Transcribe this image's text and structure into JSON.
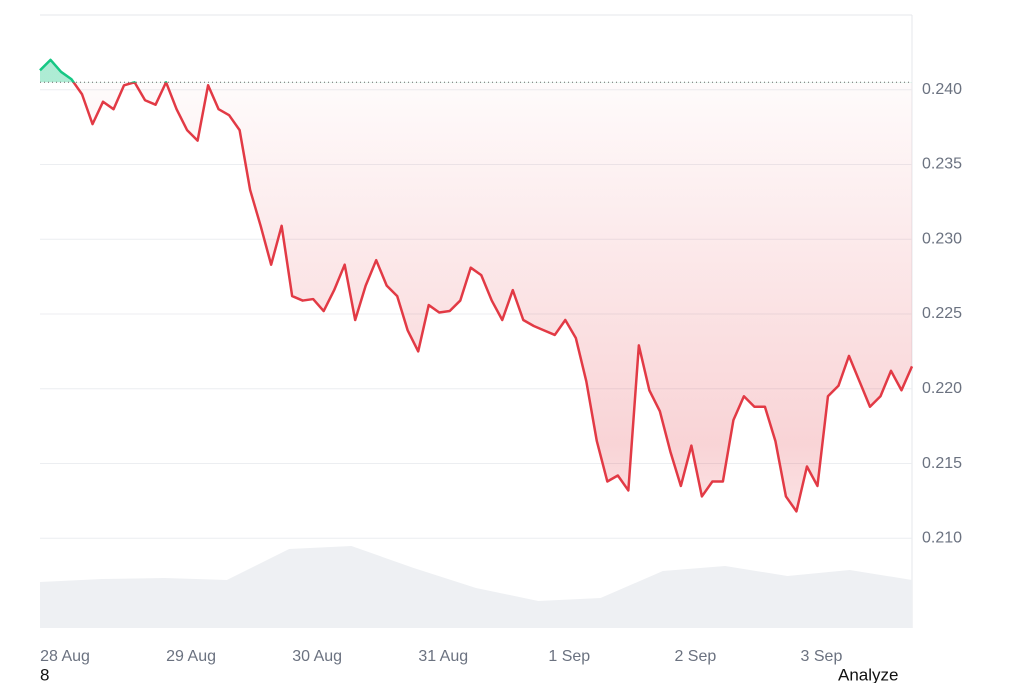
{
  "chart_data": {
    "type": "line",
    "categories": [
      null,
      null,
      "28 Aug",
      null,
      null,
      null,
      null,
      null,
      null,
      null,
      null,
      null,
      null,
      null,
      "29 Aug",
      null,
      null,
      null,
      null,
      null,
      null,
      null,
      null,
      null,
      null,
      null,
      "30 Aug",
      null,
      null,
      null,
      null,
      null,
      null,
      null,
      null,
      null,
      null,
      null,
      "31 Aug",
      null,
      null,
      null,
      null,
      null,
      null,
      null,
      null,
      null,
      null,
      null,
      "1 Sep",
      null,
      null,
      null,
      null,
      null,
      null,
      null,
      null,
      null,
      null,
      null,
      "2 Sep",
      null,
      null,
      null,
      null,
      null,
      null,
      null,
      null,
      null,
      null,
      null,
      "3 Sep",
      null,
      null,
      null,
      null,
      null,
      null,
      null,
      null,
      null
    ],
    "series": [
      {
        "values": [
          0.2413,
          0.242,
          0.2412,
          0.2407,
          0.2397,
          0.2377,
          0.2392,
          0.2387,
          0.2403,
          0.2405,
          0.2393,
          0.239,
          0.2405,
          0.2387,
          0.2373,
          0.2366,
          0.2403,
          0.2387,
          0.2383,
          0.2373,
          0.2333,
          0.2309,
          0.2283,
          0.2309,
          0.2262,
          0.2259,
          0.226,
          0.2252,
          0.2266,
          0.2283,
          0.2246,
          0.2269,
          0.2286,
          0.2269,
          0.2262,
          0.2239,
          0.2225,
          0.2256,
          0.2251,
          0.2252,
          0.2259,
          0.2281,
          0.2276,
          0.2259,
          0.2246,
          0.2266,
          0.2246,
          0.2242,
          0.2239,
          0.2236,
          0.2246,
          0.2234,
          0.2205,
          0.2165,
          0.2138,
          0.2142,
          0.2132,
          0.2229,
          0.2199,
          0.2185,
          0.2158,
          0.2135,
          0.2162,
          0.2128,
          0.2138,
          0.2138,
          0.2179,
          0.2195,
          0.2188,
          0.2188,
          0.2165,
          0.2128,
          0.2118,
          0.2148,
          0.2135,
          0.2195,
          0.2202,
          0.2222,
          0.2205,
          0.2188,
          0.2195,
          0.2212,
          0.2199,
          0.2215
        ]
      }
    ],
    "up_color": "#16c784",
    "down_color": "#e23a45",
    "reference_value": 0.2405,
    "ylim": [
      0.204,
      0.245
    ],
    "yticks": [
      {
        "value": 0.21,
        "label": "0.210"
      },
      0.215,
      {
        "value": 0.22,
        "label": "0.220"
      },
      0.225,
      {
        "value": 0.23,
        "label": "0.230"
      },
      0.235,
      {
        "value": 0.24,
        "label": "0.240"
      }
    ],
    "grid": true,
    "volume": {
      "color": "#eef0f3",
      "values": [
        46,
        49,
        50,
        48,
        79,
        82,
        60,
        40,
        27,
        30,
        57,
        62,
        52,
        58,
        48
      ],
      "y2lim": [
        0,
        100
      ]
    }
  },
  "footer": {
    "left": "8",
    "right": "Analyze"
  }
}
